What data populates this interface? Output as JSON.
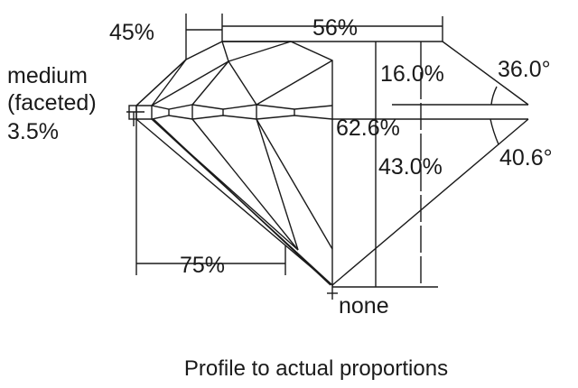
{
  "labels": {
    "table_width": "56%",
    "star_length": "45%",
    "girdle_line1": "medium",
    "girdle_line2": "(faceted)",
    "girdle_line3": "3.5%",
    "crown_height": "16.0%",
    "crown_angle": "36.0°",
    "total_depth": "62.6%",
    "pavilion_depth": "43.0%",
    "pavilion_angle": "40.6°",
    "lower_half": "75%",
    "culet": "none"
  },
  "caption": "Profile to actual proportions"
}
